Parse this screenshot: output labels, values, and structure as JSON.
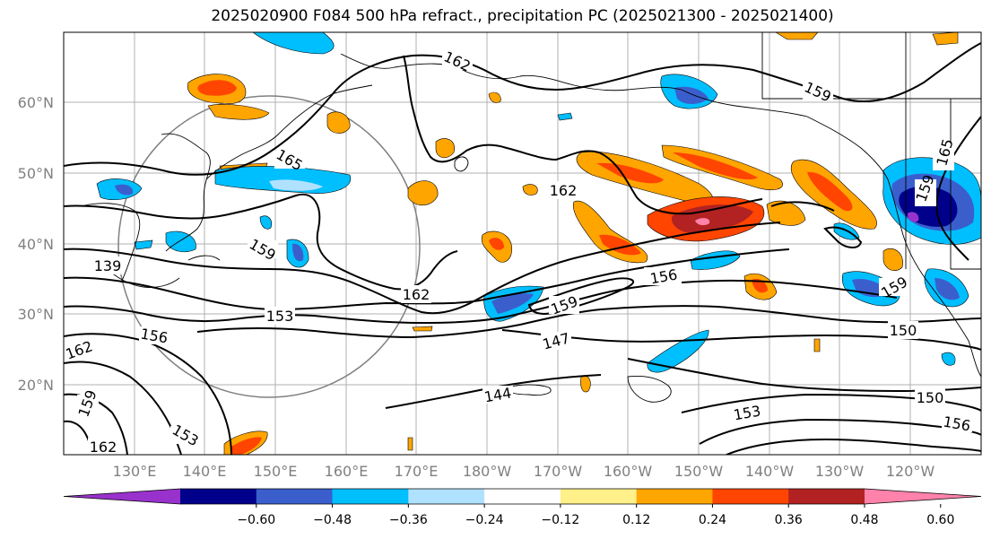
{
  "title": "2025020900 F084 500 hPa refract., precipitation PC (2025021300 - 2025021400)",
  "lat_ticks": [
    "60°N",
    "50°N",
    "40°N",
    "30°N",
    "20°N"
  ],
  "lon_ticks": [
    "130°E",
    "140°E",
    "150°E",
    "160°E",
    "170°E",
    "180°W",
    "170°W",
    "160°W",
    "150°W",
    "140°W",
    "130°W",
    "120°W"
  ],
  "contour_labels": [
    "162",
    "159",
    "165",
    "162",
    "162",
    "165",
    "159",
    "159",
    "139",
    "162",
    "156",
    "153",
    "159",
    "156",
    "147",
    "150",
    "159",
    "144",
    "153",
    "150",
    "156",
    "159",
    "162",
    "153"
  ],
  "colorbar": {
    "ticks": [
      "−0.60",
      "−0.48",
      "−0.36",
      "−0.24",
      "−0.12",
      "0.12",
      "0.24",
      "0.36",
      "0.48",
      "0.60"
    ],
    "colors": [
      "#9932cc",
      "#00008b",
      "#3a5fcd",
      "#00bfff",
      "#b0e2ff",
      "#ffffff",
      "#fff08a",
      "#ffa500",
      "#ff4500",
      "#b22222",
      "#ff82ab"
    ]
  }
}
